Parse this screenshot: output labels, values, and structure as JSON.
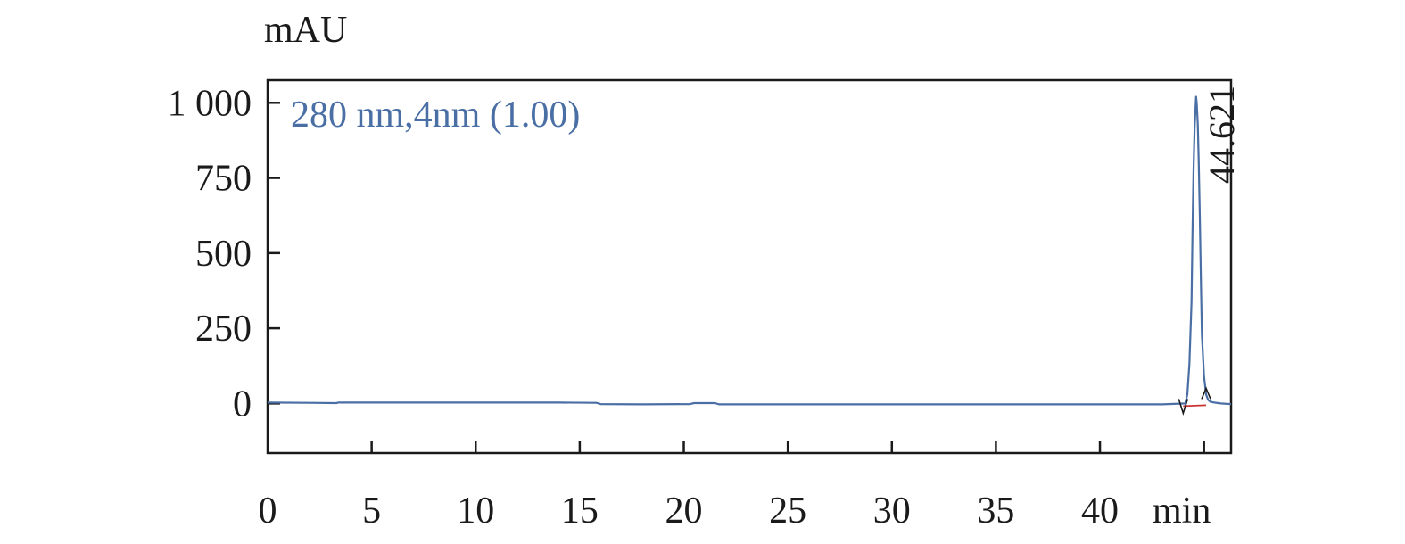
{
  "chart_data": {
    "type": "line",
    "ylabel": "mAU",
    "xlabel": "min",
    "xlim": [
      0,
      46.3
    ],
    "ylim": [
      -165,
      1075
    ],
    "xticks": [
      0,
      5,
      10,
      15,
      20,
      25,
      30,
      35,
      40
    ],
    "xtick_labels": [
      "0",
      "5",
      "10",
      "15",
      "20",
      "25",
      "30",
      "35",
      "40"
    ],
    "yticks": [
      0,
      250,
      500,
      750,
      1000
    ],
    "ytick_labels": [
      "0",
      "250",
      "500",
      "750",
      "1 000"
    ],
    "grid": false,
    "legend": {
      "text": "280 nm,4nm (1.00)",
      "placement": "top-left"
    },
    "series": [
      {
        "color": "#4a6fa5",
        "x": [
          0,
          2,
          3.3,
          3.4,
          6,
          10,
          14,
          15.8,
          16,
          18,
          20.3,
          20.5,
          21.5,
          21.7,
          25,
          30,
          35,
          40,
          43,
          44.1,
          44.2,
          44.3,
          44.4,
          44.45,
          44.5,
          44.55,
          44.6,
          44.621,
          44.65,
          44.7,
          44.75,
          44.8,
          44.85,
          44.9,
          45.0,
          45.1,
          45.2,
          45.3,
          45.5,
          45.8,
          46.3
        ],
        "y": [
          3,
          2,
          1,
          3,
          3,
          3,
          3,
          2,
          -2,
          -3,
          -2,
          1,
          1,
          -3,
          -3,
          -3,
          -3,
          -3,
          -3,
          0,
          30,
          130,
          340,
          570,
          780,
          920,
          990,
          1020,
          1000,
          930,
          800,
          620,
          410,
          230,
          90,
          30,
          12,
          6,
          3,
          0,
          -2
        ]
      }
    ],
    "peaks": [
      {
        "label": "44.621",
        "x": 44.621,
        "y": 1020,
        "start": 44.0,
        "end": 45.1
      }
    ]
  }
}
